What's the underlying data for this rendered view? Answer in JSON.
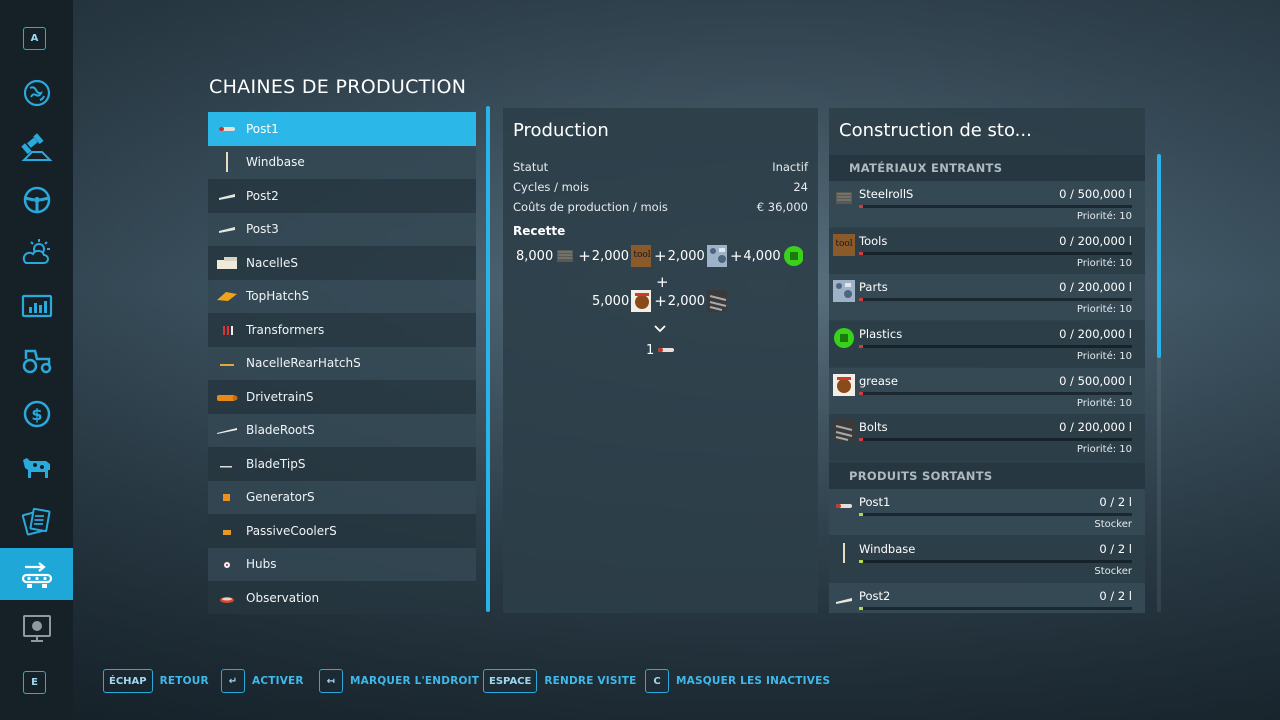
{
  "page_title": "CHAINES DE PRODUCTION",
  "sidebar": {
    "top_key": "A",
    "bottom_key": "E",
    "items": [
      {
        "icon": "globe-icon"
      },
      {
        "icon": "satellite-icon"
      },
      {
        "icon": "steering-wheel-icon"
      },
      {
        "icon": "weather-icon"
      },
      {
        "icon": "stats-icon"
      },
      {
        "icon": "tractor-icon"
      },
      {
        "icon": "dollar-icon"
      },
      {
        "icon": "cow-icon"
      },
      {
        "icon": "contracts-icon"
      },
      {
        "icon": "production-icon",
        "active": true
      },
      {
        "icon": "tutorial-icon"
      }
    ]
  },
  "production_list": [
    {
      "name": "Post1",
      "icon": "post-icon",
      "selected": true
    },
    {
      "name": "Windbase",
      "icon": "windbase-icon"
    },
    {
      "name": "Post2",
      "icon": "post-icon"
    },
    {
      "name": "Post3",
      "icon": "post-icon"
    },
    {
      "name": "NacelleS",
      "icon": "nacelle-icon"
    },
    {
      "name": "TopHatchS",
      "icon": "hatch-icon"
    },
    {
      "name": "Transformers",
      "icon": "transformer-icon"
    },
    {
      "name": "NacelleRearHatchS",
      "icon": "hatch-icon"
    },
    {
      "name": "DrivetrainS",
      "icon": "drivetrain-icon"
    },
    {
      "name": "BladeRootS",
      "icon": "blade-icon"
    },
    {
      "name": "BladeTipS",
      "icon": "blade-icon"
    },
    {
      "name": "GeneratorS",
      "icon": "generator-icon"
    },
    {
      "name": "PassiveCoolerS",
      "icon": "cooler-icon"
    },
    {
      "name": "Hubs",
      "icon": "hub-icon"
    },
    {
      "name": "Observation",
      "icon": "observation-icon"
    }
  ],
  "production": {
    "title": "Production",
    "stats": [
      {
        "label": "Statut",
        "value": "Inactif"
      },
      {
        "label": "Cycles / mois",
        "value": "24"
      },
      {
        "label": "Coûts de production / mois",
        "value": "€ 36,000"
      }
    ],
    "recipe_label": "Recette",
    "recipe_line1": [
      {
        "amount": "8,000",
        "icon": "steelroll-icon"
      },
      {
        "amount": "2,000",
        "icon": "tools-icon"
      },
      {
        "amount": "2,000",
        "icon": "parts-icon"
      },
      {
        "amount": "4,000",
        "icon": "plastics-icon"
      }
    ],
    "recipe_line2": [
      {
        "amount": "5,000",
        "icon": "grease-icon"
      },
      {
        "amount": "2,000",
        "icon": "bolts-icon"
      }
    ],
    "plus": "+",
    "output_amount": "1",
    "output_icon": "post-icon"
  },
  "storage": {
    "title": "Construction de sto...",
    "inputs_header": "MATÉRIAUX ENTRANTS",
    "outputs_header": "PRODUITS SORTANTS",
    "inputs": [
      {
        "name": "SteelrollS",
        "amount": "0  / 500,000 l",
        "sub": "Priorité: 10",
        "icon": "steelroll-icon",
        "fill": 0
      },
      {
        "name": "Tools",
        "amount": "0  / 200,000 l",
        "sub": "Priorité: 10",
        "icon": "tools-icon",
        "fill": 0
      },
      {
        "name": "Parts",
        "amount": "0  / 200,000 l",
        "sub": "Priorité: 10",
        "icon": "parts-icon",
        "fill": 0
      },
      {
        "name": "Plastics",
        "amount": "0  / 200,000 l",
        "sub": "Priorité: 10",
        "icon": "plastics-icon",
        "fill": 0
      },
      {
        "name": "grease",
        "amount": "0  / 500,000 l",
        "sub": "Priorité: 10",
        "icon": "grease-icon",
        "fill": 0
      },
      {
        "name": "Bolts",
        "amount": "0  / 200,000 l",
        "sub": "Priorité: 10",
        "icon": "bolts-icon",
        "fill": 0
      }
    ],
    "outputs": [
      {
        "name": "Post1",
        "amount": "0  / 2 l",
        "sub": "Stocker",
        "icon": "post-icon",
        "fill": 0
      },
      {
        "name": "Windbase",
        "amount": "0  / 2 l",
        "sub": "Stocker",
        "icon": "windbase-icon",
        "fill": 0
      },
      {
        "name": "Post2",
        "amount": "0  / 2 l",
        "sub": "",
        "icon": "post-icon",
        "fill": 0
      }
    ]
  },
  "hints": [
    {
      "key": "ÉCHAP",
      "label": "RETOUR"
    },
    {
      "key": "↵",
      "label": "ACTIVER"
    },
    {
      "key": "↤",
      "label": "MARQUER L'ENDROIT"
    },
    {
      "key": "ESPACE",
      "label": "RENDRE VISITE"
    },
    {
      "key": "C",
      "label": "MASQUER LES INACTIVES"
    }
  ],
  "colors": {
    "accent": "#2bb8e8",
    "input_bar": "#d63b3b",
    "output_bar": "#b8d84a"
  }
}
